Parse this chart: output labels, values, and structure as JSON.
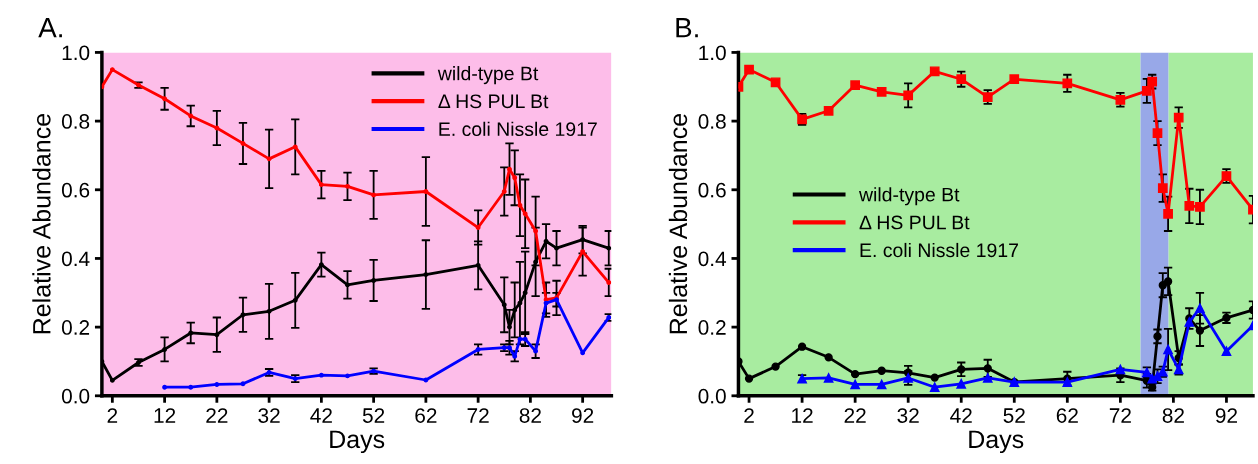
{
  "chart_data": [
    {
      "type": "line",
      "title": "A.",
      "xlabel": "Days",
      "ylabel": "Relative Abundance",
      "bands": [
        {
          "axis": "x",
          "from": 0,
          "to": 97.5,
          "color": "#fdbde9"
        }
      ],
      "x": [
        0,
        2,
        7,
        12,
        17,
        22,
        27,
        32,
        37,
        42,
        47,
        52,
        62,
        72,
        77,
        78,
        79,
        80,
        81,
        83,
        85,
        87,
        92,
        97
      ],
      "xlim": [
        0,
        97.5
      ],
      "xticks": [
        2,
        12,
        22,
        32,
        42,
        52,
        62,
        72,
        82,
        92
      ],
      "ylim": [
        0,
        1
      ],
      "yticks": [
        {
          "value": 0,
          "label": "0.0"
        },
        {
          "value": 0.2,
          "label": "0.2"
        },
        {
          "value": 0.4,
          "label": "0.4"
        },
        {
          "value": 0.6,
          "label": "0.6"
        },
        {
          "value": 0.8,
          "label": "0.8"
        },
        {
          "value": 1,
          "label": "1.0"
        }
      ],
      "grid": false,
      "legend": "top right",
      "marker": "circle",
      "series": [
        {
          "name": "wild-type Bt",
          "color": "#000000",
          "values": [
            0.1,
            0.045,
            0.097,
            0.135,
            0.183,
            0.178,
            0.236,
            0.246,
            0.278,
            0.382,
            0.323,
            0.336,
            0.353,
            0.38,
            0.265,
            0.2,
            0.25,
            0.27,
            0.3,
            0.39,
            0.45,
            0.43,
            0.455,
            0.43
          ],
          "errors": [
            null,
            null,
            0.01,
            0.035,
            0.03,
            0.05,
            0.05,
            0.08,
            0.08,
            0.035,
            0.04,
            0.06,
            0.1,
            0.07,
            0.08,
            0.05,
            0.08,
            0.12,
            0.12,
            0.1,
            0.05,
            0.05,
            0.04,
            0.05
          ]
        },
        {
          "name": "Δ HS PUL Bt",
          "color": "#ff0000",
          "values": [
            0.9,
            0.95,
            0.905,
            0.865,
            0.815,
            0.78,
            0.735,
            0.69,
            0.725,
            0.615,
            0.61,
            0.585,
            0.595,
            0.49,
            0.595,
            0.66,
            0.635,
            0.555,
            0.53,
            0.48,
            0.28,
            0.285,
            0.42,
            0.33
          ],
          "errors": [
            null,
            null,
            0.008,
            0.032,
            0.03,
            0.05,
            0.06,
            0.085,
            0.08,
            0.04,
            0.04,
            0.07,
            0.1,
            0.05,
            0.07,
            0.075,
            0.08,
            0.09,
            0.1,
            0.1,
            0.05,
            0.05,
            0.07,
            0.04
          ]
        },
        {
          "name": "E. coli Nissle 1917",
          "color": "#0000ff",
          "values": [
            null,
            null,
            null,
            0.025,
            0.025,
            0.033,
            0.035,
            0.068,
            0.05,
            0.06,
            0.058,
            0.072,
            0.046,
            0.135,
            0.14,
            0.14,
            0.115,
            0.165,
            0.165,
            0.13,
            0.27,
            0.28,
            0.125,
            0.228
          ],
          "errors": [
            null,
            null,
            null,
            null,
            null,
            null,
            null,
            0.01,
            0.01,
            null,
            null,
            0.008,
            null,
            0.015,
            0.01,
            0.02,
            0.015,
            null,
            0.02,
            0.02,
            0.03,
            0.02,
            null,
            0.01
          ]
        }
      ]
    },
    {
      "type": "line",
      "title": "B.",
      "xlabel": "Days",
      "ylabel": "Relative Abundance",
      "x": [
        0,
        2,
        7,
        12,
        17,
        22,
        27,
        32,
        37,
        42,
        47,
        52,
        62,
        72,
        77,
        78,
        79,
        80,
        81,
        83,
        85,
        87,
        92,
        97
      ],
      "xlim": [
        0,
        97
      ],
      "xticks": [
        2,
        12,
        22,
        32,
        42,
        52,
        62,
        72,
        82,
        92
      ],
      "ylim": [
        0,
        1
      ],
      "yticks": [
        {
          "value": 0,
          "label": "0.0"
        },
        {
          "value": 0.2,
          "label": "0.2"
        },
        {
          "value": 0.4,
          "label": "0.4"
        },
        {
          "value": 0.6,
          "label": "0.6"
        },
        {
          "value": 0.8,
          "label": "0.8"
        },
        {
          "value": 1,
          "label": "1.0"
        }
      ],
      "grid": false,
      "legend": "center left",
      "bands": [
        {
          "axis": "x",
          "from": 0,
          "to": 75.8,
          "color": "#a8eca0"
        },
        {
          "axis": "x",
          "from": 75.8,
          "to": 81.1,
          "color": "#98a8e8"
        },
        {
          "axis": "x",
          "from": 81.1,
          "to": 97,
          "color": "#a8eca0"
        }
      ],
      "series": [
        {
          "name": "wild-type Bt",
          "color": "#000000",
          "marker": "circle",
          "values": [
            0.1,
            0.05,
            0.085,
            0.143,
            0.112,
            0.063,
            0.073,
            0.067,
            0.053,
            0.077,
            0.08,
            0.04,
            0.05,
            0.06,
            0.044,
            0.025,
            0.173,
            0.322,
            0.333,
            0.11,
            0.225,
            0.19,
            0.227,
            0.25
          ],
          "errors": [
            null,
            null,
            null,
            null,
            null,
            null,
            null,
            0.02,
            null,
            0.02,
            0.025,
            null,
            0.02,
            0.02,
            0.02,
            0.01,
            0.02,
            0.035,
            0.04,
            0.02,
            0.03,
            0.045,
            0.015,
            0.025
          ]
        },
        {
          "name": "Δ HS PUL Bt",
          "color": "#ff0000",
          "marker": "square",
          "values": [
            0.9,
            0.95,
            0.913,
            0.805,
            0.83,
            0.905,
            0.885,
            0.875,
            0.945,
            0.922,
            0.87,
            0.922,
            0.91,
            0.862,
            0.888,
            0.915,
            0.765,
            0.605,
            0.53,
            0.81,
            0.553,
            0.55,
            0.64,
            0.542
          ],
          "errors": [
            null,
            null,
            null,
            0.016,
            null,
            null,
            null,
            0.035,
            null,
            0.022,
            0.02,
            null,
            0.025,
            0.02,
            0.035,
            0.02,
            0.035,
            0.04,
            0.05,
            0.03,
            0.05,
            0.05,
            0.02,
            0.04
          ]
        },
        {
          "name": "E. coli Nissle 1917",
          "color": "#0000ff",
          "marker": "triangle",
          "values": [
            null,
            null,
            null,
            0.05,
            0.052,
            0.033,
            0.033,
            0.052,
            0.025,
            0.035,
            0.052,
            0.04,
            0.04,
            0.077,
            0.068,
            0.05,
            0.057,
            0.07,
            0.135,
            0.077,
            0.215,
            0.255,
            0.13,
            0.205
          ],
          "errors": [
            null,
            null,
            null,
            0.01,
            null,
            null,
            null,
            0.02,
            null,
            null,
            null,
            null,
            null,
            null,
            0.015,
            null,
            0.02,
            0.015,
            0.06,
            0.015,
            null,
            0.045,
            null,
            null
          ]
        }
      ]
    }
  ]
}
